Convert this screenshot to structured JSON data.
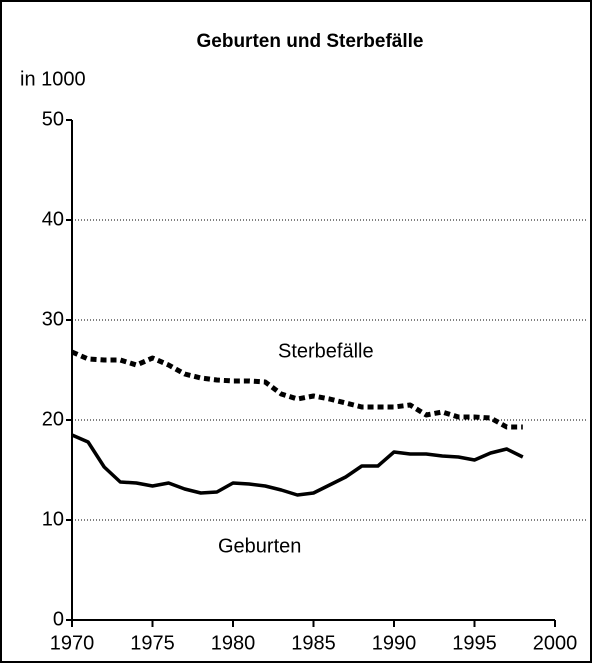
{
  "chart_data": {
    "type": "line",
    "title": "Geburten und Sterbefälle",
    "y_label": "in 1000",
    "x": [
      1970,
      1971,
      1972,
      1973,
      1974,
      1975,
      1976,
      1977,
      1978,
      1979,
      1980,
      1981,
      1982,
      1983,
      1984,
      1985,
      1986,
      1987,
      1988,
      1989,
      1990,
      1991,
      1992,
      1993,
      1994,
      1995,
      1996,
      1997,
      1998
    ],
    "series": [
      {
        "name": "Sterbefälle",
        "color": "#000000",
        "dash": true,
        "values": [
          26.8,
          26.1,
          26.0,
          26.0,
          25.5,
          26.2,
          25.5,
          24.6,
          24.2,
          24.0,
          23.9,
          23.9,
          23.8,
          22.6,
          22.1,
          22.4,
          22.1,
          21.7,
          21.3,
          21.3,
          21.3,
          21.5,
          20.5,
          20.8,
          20.3,
          20.3,
          20.2,
          19.3,
          19.3
        ]
      },
      {
        "name": "Geburten",
        "color": "#000000",
        "dash": false,
        "values": [
          18.5,
          17.8,
          15.3,
          13.8,
          13.7,
          13.4,
          13.7,
          13.1,
          12.7,
          12.8,
          13.7,
          13.6,
          13.4,
          13.0,
          12.5,
          12.7,
          13.5,
          14.3,
          15.4,
          15.4,
          16.8,
          16.6,
          16.6,
          16.4,
          16.3,
          16.0,
          16.7,
          17.1,
          16.3
        ]
      }
    ],
    "xlim": [
      1970,
      2000
    ],
    "xticks": [
      1970,
      1975,
      1980,
      1985,
      1990,
      1995,
      2000
    ],
    "ylim": [
      0,
      50
    ],
    "yticks": [
      0,
      10,
      20,
      30,
      40,
      50
    ],
    "grid": true
  }
}
